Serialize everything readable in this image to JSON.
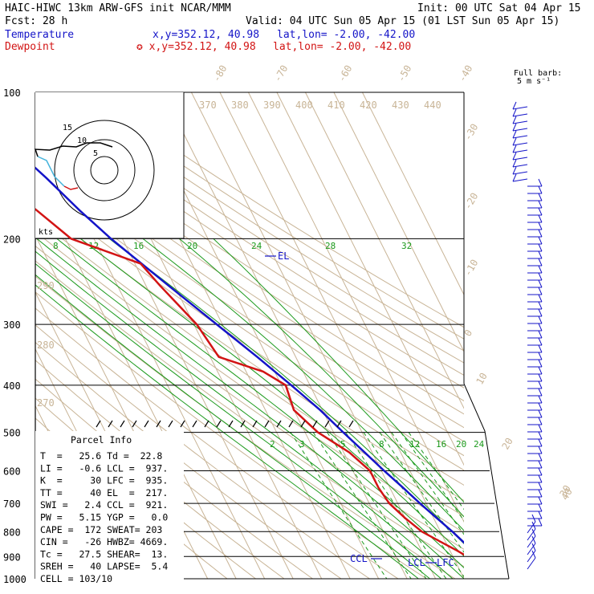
{
  "header": {
    "left1": "HAIC-HIWC 13km ARW-GFS init   NCAR/MMM",
    "init": "Init: 00 UTC Sat 04 Apr 15",
    "fcst": "Fcst:    28 h",
    "valid": "Valid: 04 UTC Sun 05 Apr 15 (01 LST Sun 05 Apr 15)",
    "temp_label": "Temperature",
    "dew_label": "Dewpoint",
    "temp_xy": "x,y=352.12, 40.98",
    "dew_xy": "✪ x,y=352.12, 40.98",
    "latlon": "lat,lon= -2.00, -42.00"
  },
  "colors": {
    "temperature": "#1414c8",
    "dewpoint": "#d21414",
    "isotherm": "#c8b496",
    "mixing": "#1c9a1c",
    "hodo_red": "#d21414",
    "hodo_cyan": "#46b4dc"
  },
  "barb_key": {
    "line1": "Full barb:",
    "line2": "5 m s⁻¹"
  },
  "pressure_labels": [
    "100",
    "200",
    "300",
    "400",
    "500",
    "600",
    "700",
    "800",
    "900",
    "1000"
  ],
  "pressure_levels": [
    100,
    200,
    300,
    400,
    500,
    600,
    700,
    800,
    900,
    1000
  ],
  "isotherm_labels": [
    "-80",
    "-70",
    "-60",
    "-50",
    "-40",
    "-30",
    "-20",
    "-10",
    "0",
    "10",
    "20",
    "30",
    "40"
  ],
  "theta_labels": [
    "370",
    "380",
    "390",
    "400",
    "410",
    "420",
    "430",
    "440"
  ],
  "theta_side_labels": [
    "290",
    "280",
    "270"
  ],
  "mixing_labels_top": [
    "8",
    "12",
    "16",
    "20",
    "24",
    "28",
    "32"
  ],
  "mixing_labels_low": [
    "2",
    "3",
    "5",
    "8",
    "12",
    "16",
    "20",
    "24"
  ],
  "hodograph": {
    "units": "kts",
    "rings": [
      "5",
      "10",
      "15"
    ]
  },
  "markers": {
    "el": "EL",
    "ccl": "CCL",
    "lcl": "LCL",
    "lfc": "LFC"
  },
  "parcel": {
    "title": "Parcel Info",
    "rows": [
      "T  =   25.6 Td =  22.8",
      "LI =   -0.6 LCL =  937.",
      "K  =     30 LFC =  935.",
      "TT =     40 EL  =  217.",
      "SWI =   2.4 CCL =  921.",
      "PW =   5.15 YGP =   0.0",
      "CAPE =  172 SWEAT= 203",
      "CIN =   -26 HWBZ= 4669.",
      "Tc =   27.5 SHEAR=  13.",
      "SREH =   40 LAPSE=  5.4",
      "CELL = 103/10"
    ]
  },
  "chart_data": {
    "type": "line",
    "title": "",
    "xlabel": "",
    "ylabel": "",
    "y_axis": "pressure (hPa, log scale, inverted)",
    "ylim": [
      1000,
      100
    ],
    "series": [
      {
        "name": "Temperature",
        "pressure": [
          1000,
          975,
          950,
          925,
          900,
          875,
          850,
          800,
          750,
          700,
          650,
          600,
          550,
          500,
          450,
          400,
          350,
          300,
          250,
          200,
          175,
          150,
          125,
          100
        ],
        "values": [
          25.6,
          23.4,
          21.5,
          20.5,
          19.6,
          17.8,
          16.7,
          14.2,
          11.1,
          7.8,
          4.6,
          1.0,
          -2.6,
          -6.6,
          -10.8,
          -16.6,
          -23.5,
          -32.0,
          -42.0,
          -54.0,
          -60.0,
          -66.0,
          -74.0,
          -79.5
        ]
      },
      {
        "name": "Dewpoint",
        "pressure": [
          1000,
          975,
          950,
          925,
          900,
          875,
          850,
          800,
          750,
          700,
          650,
          600,
          550,
          500,
          450,
          400,
          375,
          350,
          300,
          250,
          225,
          200,
          175,
          150,
          125,
          100
        ],
        "values": [
          22.8,
          22.0,
          20.3,
          18.0,
          15.0,
          12.5,
          9.5,
          3.5,
          0.0,
          -3.0,
          -4.0,
          -4.0,
          -8.0,
          -15.5,
          -20.0,
          -18.5,
          -24.0,
          -37.0,
          -39.0,
          -45.0,
          -48.0,
          -68.0,
          -75.0,
          -84.0,
          -90.0,
          -95.0
        ]
      }
    ]
  }
}
